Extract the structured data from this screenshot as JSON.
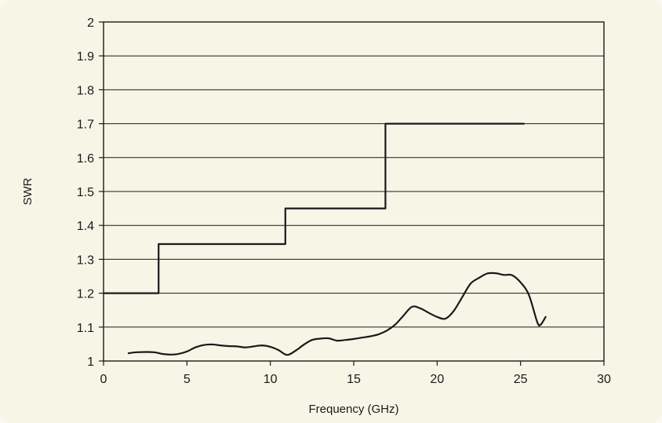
{
  "chart_data": {
    "type": "line",
    "xlabel": "Frequency (GHz)",
    "ylabel": "SWR",
    "xlim": [
      0,
      30
    ],
    "ylim": [
      1,
      2
    ],
    "x_ticks": [
      0,
      5,
      10,
      15,
      20,
      25,
      30
    ],
    "y_ticks": [
      1,
      1.1,
      1.2,
      1.3,
      1.4,
      1.5,
      1.6,
      1.7,
      1.8,
      1.9,
      2
    ],
    "grid": "horizontal",
    "legend": "none",
    "series": [
      {
        "style": "step",
        "color": "#1a1a1a",
        "points": [
          [
            0,
            1.2
          ],
          [
            3.3,
            1.2
          ],
          [
            3.3,
            1.345
          ],
          [
            10.9,
            1.345
          ],
          [
            10.9,
            1.45
          ],
          [
            16.9,
            1.45
          ],
          [
            16.9,
            1.7
          ],
          [
            25.2,
            1.7
          ]
        ]
      },
      {
        "style": "smooth",
        "color": "#1a1a1a",
        "points": [
          [
            1.5,
            1.023
          ],
          [
            2.0,
            1.026
          ],
          [
            3.0,
            1.026
          ],
          [
            3.5,
            1.021
          ],
          [
            4.0,
            1.019
          ],
          [
            4.5,
            1.021
          ],
          [
            5.0,
            1.028
          ],
          [
            5.5,
            1.04
          ],
          [
            6.0,
            1.047
          ],
          [
            6.5,
            1.049
          ],
          [
            7.0,
            1.046
          ],
          [
            7.5,
            1.044
          ],
          [
            8.0,
            1.043
          ],
          [
            8.5,
            1.04
          ],
          [
            9.0,
            1.043
          ],
          [
            9.5,
            1.046
          ],
          [
            10.0,
            1.042
          ],
          [
            10.5,
            1.032
          ],
          [
            11.0,
            1.018
          ],
          [
            11.5,
            1.03
          ],
          [
            12.0,
            1.048
          ],
          [
            12.5,
            1.062
          ],
          [
            13.0,
            1.066
          ],
          [
            13.5,
            1.067
          ],
          [
            14.0,
            1.06
          ],
          [
            14.5,
            1.062
          ],
          [
            15.0,
            1.065
          ],
          [
            15.5,
            1.069
          ],
          [
            16.0,
            1.073
          ],
          [
            16.5,
            1.079
          ],
          [
            17.0,
            1.09
          ],
          [
            17.5,
            1.108
          ],
          [
            18.0,
            1.135
          ],
          [
            18.5,
            1.16
          ],
          [
            19.0,
            1.155
          ],
          [
            19.5,
            1.142
          ],
          [
            20.0,
            1.13
          ],
          [
            20.5,
            1.125
          ],
          [
            21.0,
            1.148
          ],
          [
            21.5,
            1.188
          ],
          [
            22.0,
            1.228
          ],
          [
            22.5,
            1.245
          ],
          [
            23.0,
            1.258
          ],
          [
            23.5,
            1.259
          ],
          [
            24.0,
            1.254
          ],
          [
            24.5,
            1.253
          ],
          [
            25.0,
            1.232
          ],
          [
            25.5,
            1.195
          ],
          [
            26.0,
            1.115
          ],
          [
            26.2,
            1.107
          ],
          [
            26.5,
            1.13
          ]
        ]
      }
    ]
  }
}
